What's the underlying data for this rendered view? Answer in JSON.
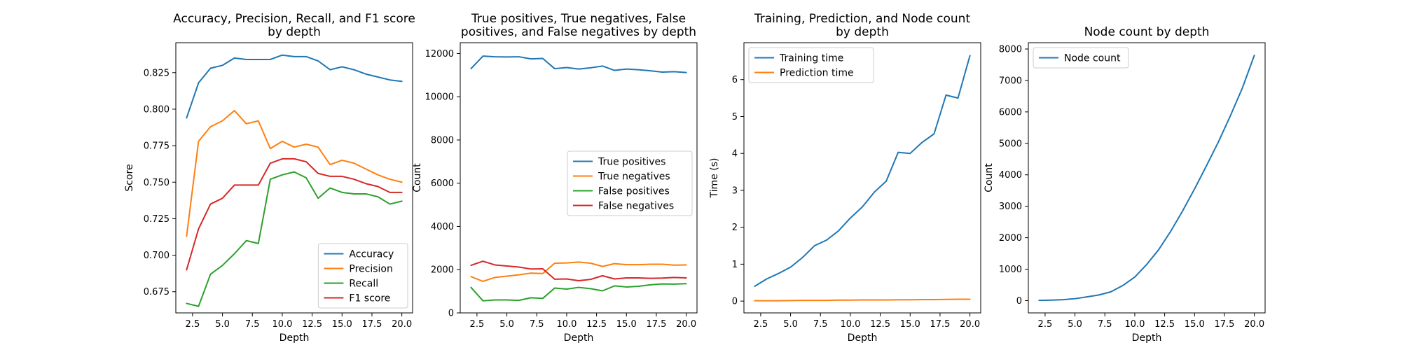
{
  "chart_data": [
    {
      "type": "line",
      "title": "Accuracy, Precision, Recall, and F1 score\nby depth",
      "xlabel": "Depth",
      "ylabel": "Score",
      "xlim": [
        1.1,
        20.9
      ],
      "ylim": [
        0.6605,
        0.8455
      ],
      "xticks": [
        2.5,
        5.0,
        7.5,
        10.0,
        12.5,
        15.0,
        17.5,
        20.0
      ],
      "yticks": [
        0.675,
        0.7,
        0.725,
        0.75,
        0.775,
        0.8,
        0.825
      ],
      "legend": "lower-right",
      "x": [
        2,
        3,
        4,
        5,
        6,
        7,
        8,
        9,
        10,
        11,
        12,
        13,
        14,
        15,
        16,
        17,
        18,
        19,
        20
      ],
      "series": [
        {
          "name": "Accuracy",
          "color": "#1f77b4",
          "values": [
            0.794,
            0.818,
            0.828,
            0.83,
            0.835,
            0.834,
            0.834,
            0.834,
            0.837,
            0.836,
            0.836,
            0.833,
            0.827,
            0.829,
            0.827,
            0.824,
            0.822,
            0.82,
            0.819
          ]
        },
        {
          "name": "Precision",
          "color": "#ff7f0e",
          "values": [
            0.713,
            0.778,
            0.788,
            0.792,
            0.799,
            0.79,
            0.792,
            0.773,
            0.778,
            0.774,
            0.776,
            0.774,
            0.762,
            0.765,
            0.763,
            0.759,
            0.755,
            0.752,
            0.75
          ]
        },
        {
          "name": "Recall",
          "color": "#2ca02c",
          "values": [
            0.667,
            0.665,
            0.687,
            0.693,
            0.701,
            0.71,
            0.708,
            0.752,
            0.755,
            0.757,
            0.753,
            0.739,
            0.746,
            0.743,
            0.742,
            0.742,
            0.74,
            0.735,
            0.737
          ]
        },
        {
          "name": "F1 score",
          "color": "#d62728",
          "values": [
            0.69,
            0.718,
            0.735,
            0.739,
            0.748,
            0.748,
            0.748,
            0.763,
            0.766,
            0.766,
            0.764,
            0.756,
            0.754,
            0.754,
            0.752,
            0.749,
            0.747,
            0.743,
            0.743
          ]
        }
      ]
    },
    {
      "type": "line",
      "title": "True positives, True negatives, False\npositives, and False negatives by depth",
      "xlabel": "Depth",
      "ylabel": "Count",
      "xlim": [
        1.1,
        20.9
      ],
      "ylim": [
        0,
        12500
      ],
      "xticks": [
        2.5,
        5.0,
        7.5,
        10.0,
        12.5,
        15.0,
        17.5,
        20.0
      ],
      "yticks": [
        0,
        2000,
        4000,
        6000,
        8000,
        10000,
        12000
      ],
      "legend": "center-right",
      "x": [
        2,
        3,
        4,
        5,
        6,
        7,
        8,
        9,
        10,
        11,
        12,
        13,
        14,
        15,
        16,
        17,
        18,
        19,
        20
      ],
      "series": [
        {
          "name": "True positives",
          "color": "#1f77b4",
          "values": [
            11300,
            11880,
            11850,
            11840,
            11850,
            11750,
            11770,
            11300,
            11350,
            11280,
            11340,
            11420,
            11220,
            11280,
            11250,
            11200,
            11140,
            11160,
            11120
          ]
        },
        {
          "name": "True negatives",
          "color": "#ff7f0e",
          "values": [
            1680,
            1460,
            1640,
            1700,
            1760,
            1840,
            1820,
            2300,
            2310,
            2350,
            2300,
            2150,
            2280,
            2230,
            2230,
            2250,
            2250,
            2210,
            2220
          ]
        },
        {
          "name": "False positives",
          "color": "#2ca02c",
          "values": [
            1180,
            560,
            600,
            600,
            580,
            700,
            670,
            1150,
            1100,
            1180,
            1120,
            1020,
            1250,
            1200,
            1230,
            1300,
            1340,
            1330,
            1350
          ]
        },
        {
          "name": "False negatives",
          "color": "#d62728",
          "values": [
            2200,
            2390,
            2220,
            2170,
            2120,
            2030,
            2040,
            1560,
            1570,
            1490,
            1550,
            1720,
            1570,
            1620,
            1620,
            1600,
            1610,
            1640,
            1620
          ]
        }
      ]
    },
    {
      "type": "line",
      "title": "Training, Prediction, and Node count\nby depth",
      "xlabel": "Depth",
      "ylabel": "Time (s)",
      "xlim": [
        1.1,
        20.9
      ],
      "ylim": [
        -0.32,
        7.0
      ],
      "xticks": [
        2.5,
        5.0,
        7.5,
        10.0,
        12.5,
        15.0,
        17.5,
        20.0
      ],
      "yticks": [
        0,
        1,
        2,
        3,
        4,
        5,
        6
      ],
      "legend": "upper-left",
      "x": [
        2,
        3,
        4,
        5,
        6,
        7,
        8,
        9,
        10,
        11,
        12,
        13,
        14,
        15,
        16,
        17,
        18,
        19,
        20
      ],
      "series": [
        {
          "name": "Training time",
          "color": "#1f77b4",
          "values": [
            0.4,
            0.6,
            0.75,
            0.92,
            1.18,
            1.5,
            1.65,
            1.9,
            2.25,
            2.55,
            2.95,
            3.25,
            4.03,
            4.0,
            4.3,
            4.53,
            5.58,
            5.5,
            6.65
          ]
        },
        {
          "name": "Prediction time",
          "color": "#ff7f0e",
          "values": [
            0.01,
            0.01,
            0.01,
            0.015,
            0.02,
            0.02,
            0.02,
            0.025,
            0.025,
            0.03,
            0.03,
            0.03,
            0.035,
            0.035,
            0.04,
            0.04,
            0.045,
            0.05,
            0.05
          ]
        }
      ]
    },
    {
      "type": "line",
      "title": "Node count by depth",
      "xlabel": "Depth",
      "ylabel": "Count",
      "xlim": [
        1.1,
        20.9
      ],
      "ylim": [
        -390,
        8200
      ],
      "xticks": [
        2.5,
        5.0,
        7.5,
        10.0,
        12.5,
        15.0,
        17.5,
        20.0
      ],
      "yticks": [
        0,
        1000,
        2000,
        3000,
        4000,
        5000,
        6000,
        7000,
        8000
      ],
      "legend": "upper-left",
      "x": [
        2,
        3,
        4,
        5,
        6,
        7,
        8,
        9,
        10,
        11,
        12,
        13,
        14,
        15,
        16,
        17,
        18,
        19,
        20
      ],
      "series": [
        {
          "name": "Node count",
          "color": "#1f77b4",
          "values": [
            7,
            15,
            31,
            62,
            120,
            180,
            280,
            480,
            750,
            1150,
            1620,
            2200,
            2850,
            3550,
            4290,
            5050,
            5880,
            6760,
            7800
          ]
        }
      ]
    }
  ]
}
